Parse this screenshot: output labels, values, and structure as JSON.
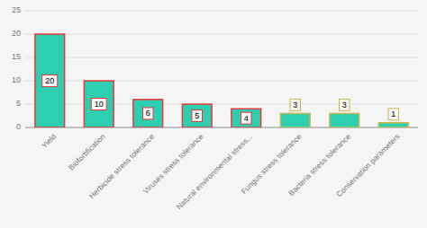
{
  "chart_data": {
    "type": "bar",
    "categories": [
      "Yield",
      "Biofortification",
      "Herbicide stress tolerance",
      "Viruses stress tolerance",
      "Natural environmental stress...",
      "Fungus stress tolerance",
      "Bacteria stress tolerance",
      "Conservation parameters"
    ],
    "values": [
      20,
      10,
      6,
      5,
      4,
      3,
      3,
      1
    ],
    "color": "#2ecfb1",
    "colors": [
      "#e8393a",
      "#e8393a",
      "#e8393a",
      "#e8393a",
      "#e8393a",
      "#c8b84a",
      "#c8b84a",
      "#c8b84a"
    ],
    "ylim": [
      0,
      25
    ],
    "yticks": [
      0,
      5,
      10,
      15,
      20,
      25
    ],
    "grid": true,
    "data_labels": true
  }
}
